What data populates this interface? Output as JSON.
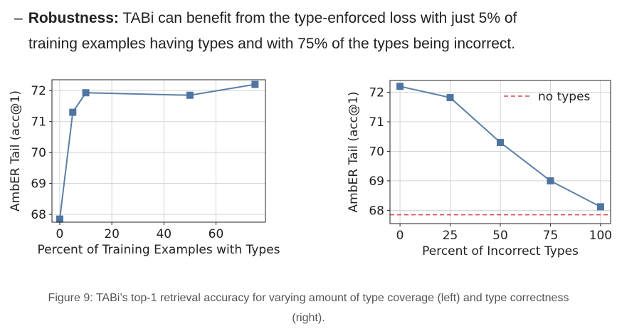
{
  "text": {
    "dash": "–",
    "term": "Robustness:",
    "line1_rest": "TABi can benefit from the type-enforced loss with just 5% of",
    "line2": "training examples having types and with 75% of the types being incorrect."
  },
  "caption": {
    "line1": "Figure 9: TABi’s top-1 retrieval accuracy for varying amount of type coverage (left) and type correctness",
    "line2": "(right)."
  },
  "colors": {
    "series": "#5a7fa8",
    "marker": "#4f74a0",
    "baseline": "#d94c4c",
    "grid": "#d3d3d3",
    "axes": "#222222"
  },
  "chart_data": [
    {
      "type": "line",
      "xlabel": "Percent of Training Examples with Types",
      "ylabel": "AmbER Tail (acc@1)",
      "xlim": [
        -3,
        79
      ],
      "ylim": [
        67.75,
        72.35
      ],
      "xticks": [
        0,
        20,
        40,
        60
      ],
      "yticks": [
        68,
        69,
        70,
        71,
        72
      ],
      "grid": true,
      "marker": "square",
      "x": [
        0,
        5,
        10,
        50,
        75
      ],
      "y": [
        67.85,
        71.3,
        71.93,
        71.85,
        72.2
      ]
    },
    {
      "type": "line",
      "xlabel": "Percent of Incorrect Types",
      "ylabel": "AmbER Tail (acc@1)",
      "xlim": [
        -5,
        105
      ],
      "ylim": [
        67.55,
        72.4
      ],
      "xticks": [
        0,
        25,
        50,
        75,
        100
      ],
      "yticks": [
        68,
        69,
        70,
        71,
        72
      ],
      "grid": true,
      "marker": "square",
      "legend": "top-right",
      "x": [
        0,
        25,
        50,
        75,
        100
      ],
      "y": [
        72.2,
        71.82,
        70.3,
        69.0,
        68.12
      ],
      "baseline": {
        "name": "no types",
        "value": 67.85,
        "style": "dashed"
      }
    }
  ]
}
